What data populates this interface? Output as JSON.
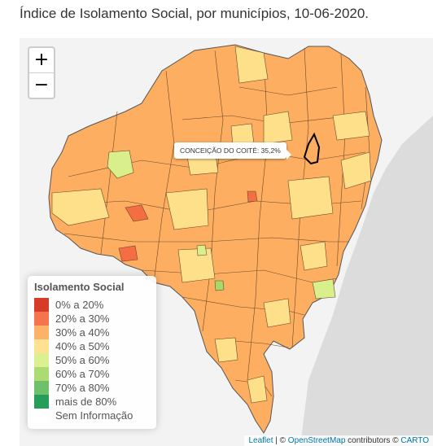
{
  "page": {
    "title": "Índice de Isolamento Social, por municípios, 10-06-2020."
  },
  "map": {
    "region": "Bahia municipalities",
    "base_fill": "#fdae61",
    "ocean_color": "#dcdcdc",
    "land_outside_color": "#f3f3f3",
    "zoom_in": "+",
    "zoom_out": "−",
    "tooltip_text": "CONCEIÇÃO DO COITÉ: 35,2%",
    "highlight_municipality": "CONCEIÇÃO DO COITÉ"
  },
  "legend": {
    "title": "Isolamento Social",
    "items": [
      {
        "label": "0% a 20%",
        "color": "#d7301f"
      },
      {
        "label": "20% a 30%",
        "color": "#f46d43"
      },
      {
        "label": "30% a 40%",
        "color": "#fdae61"
      },
      {
        "label": "40% a 50%",
        "color": "#fee08b"
      },
      {
        "label": "50% a 60%",
        "color": "#d9ef8b"
      },
      {
        "label": "60% a 70%",
        "color": "#a6d96a"
      },
      {
        "label": "70% a 80%",
        "color": "#66bd63"
      },
      {
        "label": "mais de 80%",
        "color": "#1a9850"
      },
      {
        "label": "Sem Informação",
        "color": "#ffffff"
      }
    ]
  },
  "attribution": {
    "leaflet": "Leaflet",
    "sep1": " | © ",
    "osm": "OpenStreetMap",
    "mid": " contributors © ",
    "carto": "CARTO"
  }
}
